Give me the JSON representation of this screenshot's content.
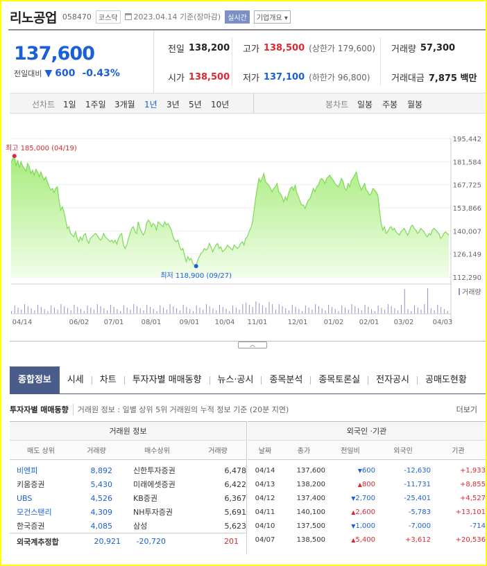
{
  "header": {
    "name": "리노공업",
    "code": "058470",
    "market_badge": "코스닥",
    "date_text": "2023.04.14 기준(장마감)",
    "realtime_button": "실시간",
    "company_overview": "기업개요"
  },
  "price": {
    "current": "137,600",
    "change_label": "전일대비",
    "change_value": "600",
    "change_pct": "-0.43%"
  },
  "stats": {
    "prev_close_label": "전일",
    "prev_close": "138,200",
    "high_label": "고가",
    "high": "138,500",
    "upper_limit": "(상한가 179,600)",
    "volume_label": "거래량",
    "volume": "57,300",
    "open_label": "시가",
    "open": "138,500",
    "low_label": "저가",
    "low": "137,100",
    "lower_limit": "(하한가 96,800)",
    "amount_label": "거래대금",
    "amount": "7,875 백만"
  },
  "period_bar": {
    "line_label": "선차트",
    "line_periods": [
      "1일",
      "1주일",
      "3개월",
      "1년",
      "3년",
      "5년",
      "10년"
    ],
    "active_period": "1년",
    "candle_label": "봉차트",
    "candle_periods": [
      "일봉",
      "주봉",
      "월봉"
    ]
  },
  "chart_data": {
    "type": "area",
    "y_ticks": [
      "195,442",
      "181,584",
      "167,725",
      "153,866",
      "140,007",
      "126,149",
      "112,290"
    ],
    "ylim": [
      112290,
      195442
    ],
    "x_labels": [
      "04/14",
      "06/02",
      "07/01",
      "08/01",
      "09/01",
      "10/04",
      "11/01",
      "12/01",
      "01/02",
      "02/01",
      "03/02",
      "04/03"
    ],
    "max_label": "최고 185,000 (04/19)",
    "min_label": "최저 118,900 (09/27)",
    "volume_label": "거래량",
    "accent": "#7ed957",
    "price_series": [
      181000,
      183500,
      185000,
      179000,
      182500,
      178000,
      181500,
      179000,
      177500,
      176000,
      180500,
      178500,
      174500,
      176500,
      173500,
      177000,
      175500,
      172500,
      175500,
      173000,
      170500,
      172500,
      169500,
      166500,
      164500,
      165500,
      163000,
      165500,
      166500,
      158500,
      152500,
      154500,
      151500,
      146500,
      141500,
      142500,
      138500,
      137500,
      136500,
      139500,
      135500,
      133500,
      136500,
      134500,
      137500,
      138500,
      134500,
      132500,
      135500,
      136500,
      137500,
      138500,
      137500,
      136000,
      134500,
      135500,
      138500,
      136500,
      135500,
      134500,
      133500,
      134500,
      133000,
      134500,
      132000,
      135500,
      137500,
      138500,
      131500,
      129500,
      131500,
      135500,
      138500,
      141500,
      142500,
      139500,
      138500,
      145500,
      141500,
      139500,
      137500,
      139500,
      144500,
      146500,
      145500,
      142500,
      144500,
      143500,
      140500,
      145500,
      144500,
      143500,
      142500,
      145500,
      143500,
      144500,
      142500,
      140500,
      136500,
      134500,
      133500,
      134500,
      130500,
      128500,
      129500,
      125500,
      121500,
      124500,
      122500,
      123500,
      120500,
      119500,
      118900,
      122500,
      124500,
      126500,
      127500,
      129500,
      128500,
      129500,
      132500,
      130500,
      127500,
      129500,
      131500,
      132500,
      129500,
      130500,
      127500,
      128500,
      129500,
      131500,
      130500,
      129500,
      128500,
      131500,
      130500,
      129500,
      130500,
      132500,
      133500,
      131500,
      135500,
      136500,
      139500,
      141500,
      144500,
      151500,
      159500,
      165500,
      171500,
      169500,
      171500,
      174500,
      169500,
      168500,
      167500,
      165500,
      163500,
      165500,
      166500,
      168500,
      163500,
      162500,
      160500,
      157500,
      160500,
      158500,
      162500,
      165500,
      166500,
      164500,
      167500,
      162500,
      160500,
      157500,
      155500,
      155500,
      153500,
      156500,
      158500,
      159500,
      162500,
      165500,
      163500,
      166500,
      167500,
      170500,
      171500,
      170500,
      168500,
      171500,
      172500,
      173500,
      171500,
      170500,
      168500,
      167500,
      166500,
      168500,
      171500,
      169500,
      165500,
      164500,
      168500,
      166500,
      170500,
      171500,
      173500,
      175500,
      170500,
      167500,
      164500,
      166500,
      168500,
      164500,
      163500,
      161500,
      162500,
      165500,
      164500,
      163500,
      161500,
      152500,
      144500,
      140500,
      142500,
      138500,
      139500,
      141500,
      142500,
      140500,
      141500,
      139500,
      138500,
      137500,
      139500,
      140500,
      141500,
      139500,
      137500,
      139500,
      142500,
      143500,
      141500,
      140500,
      138500,
      139500,
      141500,
      140500,
      139500,
      137500,
      136500,
      138500,
      137500,
      140500,
      141500,
      140500,
      139500,
      138500,
      135500,
      136500,
      138500,
      139500,
      138500,
      137600
    ]
  },
  "tabs": [
    "종합정보",
    "시세",
    "차트",
    "투자자별 매매동향",
    "뉴스·공시",
    "종목분석",
    "종목토론실",
    "전자공시",
    "공매도현황"
  ],
  "investor_section": {
    "title": "투자자별 매매동향",
    "desc": "거래원 정보 : 일별 상위 5위 거래원의 누적 정보 기준 (20분 지연)",
    "more": "더보기"
  },
  "broker_table": {
    "title": "거래원 정보",
    "columns": [
      "매도 상위",
      "거래량",
      "매수상위",
      "거래량"
    ],
    "rows": [
      {
        "sell": "비엔피",
        "sell_vol": "8,892",
        "buy": "신한투자증권",
        "buy_vol": "6,478",
        "sell_link": true
      },
      {
        "sell": "키움증권",
        "sell_vol": "5,430",
        "buy": "미래에셋증권",
        "buy_vol": "6,422",
        "sell_link": false
      },
      {
        "sell": "UBS",
        "sell_vol": "4,526",
        "buy": "KB증권",
        "buy_vol": "6,367",
        "sell_link": true
      },
      {
        "sell": "모건스탠리",
        "sell_vol": "4,309",
        "buy": "NH투자증권",
        "buy_vol": "5,691",
        "sell_link": true
      },
      {
        "sell": "한국증권",
        "sell_vol": "4,085",
        "buy": "삼성",
        "buy_vol": "5,623",
        "sell_link": false
      }
    ],
    "footer": {
      "label": "외국계추정합",
      "sell": "20,921",
      "buy": "-20,720",
      "net": "201"
    }
  },
  "foreign_table": {
    "title": "외국인 ·기관",
    "columns": [
      "날짜",
      "종가",
      "전일비",
      "외국인",
      "기관"
    ],
    "rows": [
      {
        "date": "04/14",
        "close": "137,600",
        "dir": "down",
        "chg": "600",
        "foreign": "-12,630",
        "inst": "+1,933"
      },
      {
        "date": "04/13",
        "close": "138,200",
        "dir": "up",
        "chg": "800",
        "foreign": "-11,731",
        "inst": "+8,855"
      },
      {
        "date": "04/12",
        "close": "137,400",
        "dir": "down",
        "chg": "2,700",
        "foreign": "-25,401",
        "inst": "+4,527"
      },
      {
        "date": "04/11",
        "close": "140,100",
        "dir": "up",
        "chg": "2,600",
        "foreign": "-5,783",
        "inst": "+13,101"
      },
      {
        "date": "04/10",
        "close": "137,500",
        "dir": "down",
        "chg": "1,000",
        "foreign": "-7,000",
        "inst": "-714"
      },
      {
        "date": "04/07",
        "close": "138,500",
        "dir": "up",
        "chg": "5,400",
        "foreign": "+3,612",
        "inst": "+20,536"
      }
    ]
  }
}
